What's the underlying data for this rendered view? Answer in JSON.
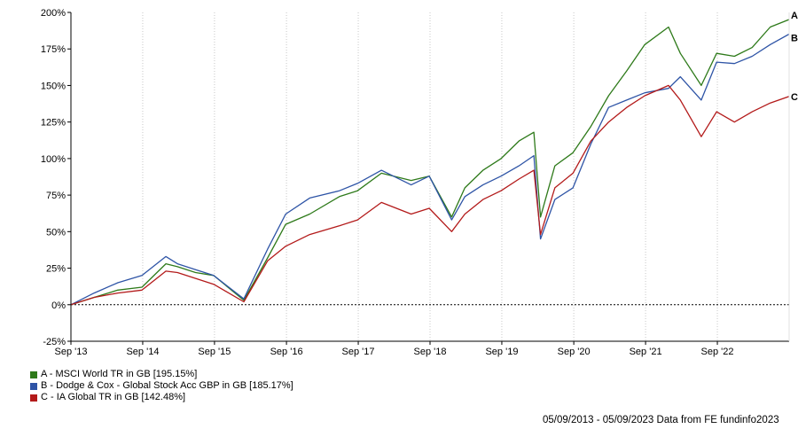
{
  "chart_data": {
    "type": "line",
    "title": "",
    "xlabel": "",
    "ylabel": "",
    "yticks": [
      "200%",
      "175%",
      "150%",
      "125%",
      "100%",
      "75%",
      "50%",
      "25%",
      "0%",
      "-25%"
    ],
    "xticks": [
      "Sep '13",
      "Sep '14",
      "Sep '15",
      "Sep '16",
      "Sep '17",
      "Sep '18",
      "Sep '19",
      "Sep '20",
      "Sep '21",
      "Sep '22"
    ],
    "ylim": [
      -25,
      200
    ],
    "xlim": [
      "2013-09-05",
      "2023-09-05"
    ],
    "grid": "vertical dotted gridlines; dashed zero line",
    "series": [
      {
        "key": "A",
        "name": "A - MSCI World TR in GB [195.15%]",
        "end_label": "A",
        "color": "#2e7a1a",
        "x": [
          "2013-09-05",
          "2014-01-01",
          "2014-05-01",
          "2014-09-01",
          "2015-01-01",
          "2015-03-01",
          "2015-06-01",
          "2015-09-01",
          "2016-02-01",
          "2016-06-01",
          "2016-09-01",
          "2017-01-01",
          "2017-06-01",
          "2017-09-01",
          "2018-01-01",
          "2018-06-01",
          "2018-09-01",
          "2018-12-24",
          "2019-03-01",
          "2019-06-01",
          "2019-09-01",
          "2019-12-01",
          "2020-02-15",
          "2020-03-20",
          "2020-06-01",
          "2020-09-01",
          "2020-12-01",
          "2021-03-01",
          "2021-06-01",
          "2021-09-01",
          "2021-12-31",
          "2022-03-01",
          "2022-06-15",
          "2022-09-01",
          "2022-12-01",
          "2023-03-01",
          "2023-06-01",
          "2023-09-05"
        ],
        "y": [
          0,
          5,
          10,
          12,
          28,
          26,
          22,
          20,
          3,
          32,
          55,
          62,
          74,
          78,
          90,
          85,
          88,
          60,
          80,
          92,
          100,
          112,
          118,
          60,
          95,
          104,
          122,
          143,
          160,
          178,
          190,
          172,
          150,
          172,
          170,
          176,
          190,
          195.15
        ]
      },
      {
        "key": "B",
        "name": "B - Dodge & Cox - Global Stock Acc GBP in GB [185.17%]",
        "end_label": "B",
        "color": "#2e54a6",
        "x": [
          "2013-09-05",
          "2014-01-01",
          "2014-05-01",
          "2014-09-01",
          "2015-01-01",
          "2015-03-01",
          "2015-06-01",
          "2015-09-01",
          "2016-02-01",
          "2016-06-01",
          "2016-09-01",
          "2017-01-01",
          "2017-06-01",
          "2017-09-01",
          "2018-01-01",
          "2018-06-01",
          "2018-09-01",
          "2018-12-24",
          "2019-03-01",
          "2019-06-01",
          "2019-09-01",
          "2019-12-01",
          "2020-02-15",
          "2020-03-20",
          "2020-06-01",
          "2020-09-01",
          "2020-12-01",
          "2021-03-01",
          "2021-06-01",
          "2021-09-01",
          "2021-12-31",
          "2022-03-01",
          "2022-06-15",
          "2022-09-01",
          "2022-12-01",
          "2023-03-01",
          "2023-06-01",
          "2023-09-05"
        ],
        "y": [
          0,
          8,
          15,
          20,
          33,
          28,
          24,
          20,
          4,
          38,
          62,
          73,
          78,
          83,
          92,
          82,
          88,
          58,
          74,
          82,
          88,
          95,
          102,
          45,
          72,
          80,
          110,
          135,
          140,
          145,
          148,
          156,
          140,
          166,
          165,
          170,
          178,
          185.17
        ]
      },
      {
        "key": "C",
        "name": "C - IA Global TR in GB [142.48%]",
        "end_label": "C",
        "color": "#b31a1a",
        "x": [
          "2013-09-05",
          "2014-01-01",
          "2014-05-01",
          "2014-09-01",
          "2015-01-01",
          "2015-03-01",
          "2015-06-01",
          "2015-09-01",
          "2016-02-01",
          "2016-06-01",
          "2016-09-01",
          "2017-01-01",
          "2017-06-01",
          "2017-09-01",
          "2018-01-01",
          "2018-06-01",
          "2018-09-01",
          "2018-12-24",
          "2019-03-01",
          "2019-06-01",
          "2019-09-01",
          "2019-12-01",
          "2020-02-15",
          "2020-03-20",
          "2020-06-01",
          "2020-09-01",
          "2020-12-01",
          "2021-03-01",
          "2021-06-01",
          "2021-09-01",
          "2021-12-31",
          "2022-03-01",
          "2022-06-15",
          "2022-09-01",
          "2022-12-01",
          "2023-03-01",
          "2023-06-01",
          "2023-09-05"
        ],
        "y": [
          0,
          5,
          8,
          10,
          23,
          22,
          18,
          14,
          2,
          30,
          40,
          48,
          54,
          58,
          70,
          62,
          66,
          50,
          62,
          72,
          78,
          86,
          92,
          48,
          80,
          90,
          112,
          125,
          135,
          143,
          150,
          140,
          115,
          132,
          125,
          132,
          138,
          142.48
        ]
      }
    ]
  },
  "footer": {
    "text": "05/09/2013 - 05/09/2023 Data from FE fundinfo2023"
  }
}
